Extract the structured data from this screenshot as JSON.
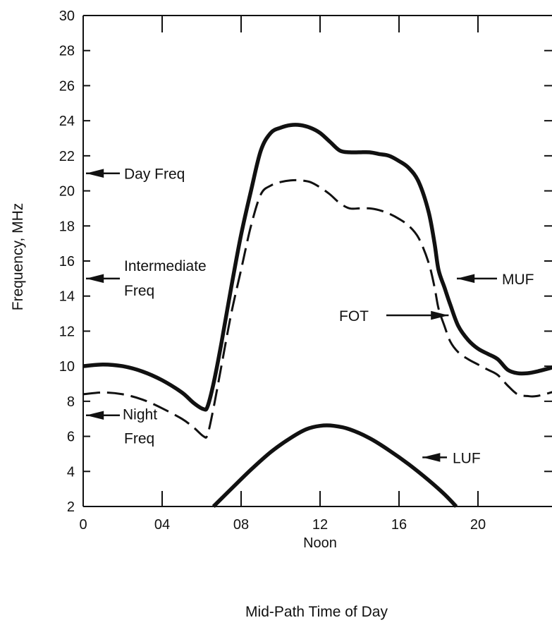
{
  "chart_data": {
    "type": "line",
    "title": "",
    "xlabel": "Mid-Path Time of Day",
    "ylabel": "Frequency, MHz",
    "xlim": [
      0,
      24
    ],
    "ylim": [
      2,
      30
    ],
    "x_ticks": [
      0,
      4,
      8,
      12,
      16,
      20
    ],
    "x_tick_labels": [
      "0",
      "04",
      "08",
      "12",
      "16",
      "20"
    ],
    "x_sub_label": "Noon",
    "y_ticks": [
      2,
      4,
      6,
      8,
      10,
      12,
      14,
      16,
      18,
      20,
      22,
      24,
      26,
      28,
      30
    ],
    "y_tick_labels": [
      "2",
      "4",
      "6",
      "8",
      "10",
      "12",
      "14",
      "16",
      "18",
      "20",
      "22",
      "24",
      "26",
      "28",
      "30"
    ],
    "grid": false,
    "series": [
      {
        "name": "MUF",
        "style": "solid",
        "x": [
          0,
          1,
          2,
          3,
          4,
          5,
          5.6,
          6.1,
          6.3,
          6.6,
          7,
          7.5,
          8,
          8.5,
          9,
          9.5,
          10,
          10.5,
          11,
          11.5,
          12,
          12.5,
          13,
          13.5,
          14,
          14.5,
          15,
          15.5,
          16,
          16.5,
          17,
          17.5,
          17.8,
          18,
          18.3,
          18.6,
          19,
          19.5,
          20,
          20.5,
          21,
          21.5,
          22,
          22.5,
          23,
          24
        ],
        "y": [
          10.0,
          10.1,
          10.0,
          9.7,
          9.2,
          8.5,
          7.9,
          7.55,
          7.7,
          9.0,
          11.3,
          14.5,
          17.5,
          20.0,
          22.3,
          23.3,
          23.6,
          23.75,
          23.75,
          23.6,
          23.3,
          22.8,
          22.3,
          22.2,
          22.2,
          22.2,
          22.1,
          22.0,
          21.7,
          21.3,
          20.5,
          18.8,
          17.0,
          15.5,
          14.5,
          13.5,
          12.3,
          11.5,
          11.0,
          10.7,
          10.4,
          9.8,
          9.6,
          9.6,
          9.7,
          10.0
        ]
      },
      {
        "name": "FOT",
        "style": "dashed",
        "x": [
          0,
          1,
          2,
          3,
          4,
          5,
          5.6,
          6.1,
          6.3,
          6.6,
          7,
          7.5,
          8,
          8.5,
          9,
          9.5,
          10,
          10.5,
          11,
          11.5,
          12,
          12.5,
          13,
          13.5,
          14,
          14.5,
          15,
          15.5,
          16,
          16.5,
          17,
          17.5,
          17.8,
          18,
          18.3,
          18.6,
          19,
          19.5,
          20,
          20.5,
          21,
          21.5,
          22,
          22.5,
          23,
          24
        ],
        "y": [
          8.4,
          8.5,
          8.4,
          8.1,
          7.6,
          7.0,
          6.5,
          6.0,
          6.1,
          7.6,
          10.0,
          13.0,
          15.5,
          18.0,
          19.8,
          20.3,
          20.5,
          20.6,
          20.6,
          20.5,
          20.2,
          19.8,
          19.3,
          19.0,
          19.0,
          19.0,
          18.9,
          18.7,
          18.4,
          18.0,
          17.3,
          15.9,
          14.5,
          13.3,
          12.3,
          11.4,
          10.8,
          10.4,
          10.1,
          9.8,
          9.5,
          8.9,
          8.4,
          8.3,
          8.3,
          8.6
        ]
      },
      {
        "name": "LUF",
        "style": "solid",
        "x": [
          6.6,
          7.5,
          8.5,
          9.5,
          10.5,
          11.3,
          12,
          12.7,
          13.5,
          14.5,
          15.5,
          16.5,
          17.5,
          18.3,
          18.9
        ],
        "y": [
          2.0,
          3.0,
          4.1,
          5.1,
          5.9,
          6.4,
          6.6,
          6.6,
          6.4,
          5.9,
          5.2,
          4.4,
          3.5,
          2.7,
          2.0
        ]
      }
    ],
    "annotations": [
      {
        "text": "Day Freq",
        "arrow_to_y": 21
      },
      {
        "text": "Intermediate",
        "text2": "Freq",
        "arrow_to_y": 15
      },
      {
        "text": "Night",
        "text2": "Freq",
        "arrow_to_y": 7.2
      },
      {
        "text": "MUF",
        "arrow_to_x": 19.0,
        "arrow_to_y": 15
      },
      {
        "text": "FOT",
        "arrow_to_x": 18.3,
        "arrow_to_y": 12.9
      },
      {
        "text": "LUF",
        "arrow_to_x": 16.9,
        "arrow_to_y": 4.8
      }
    ]
  }
}
